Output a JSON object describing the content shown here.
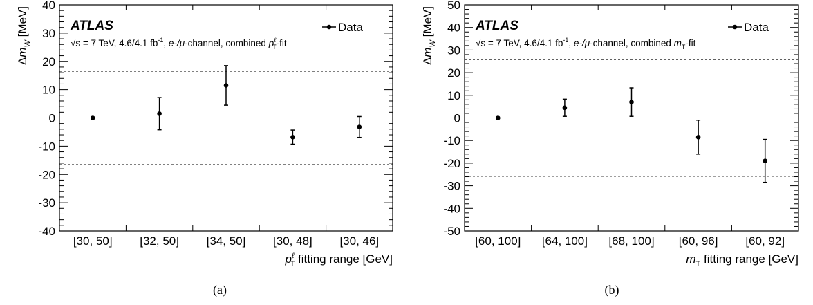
{
  "chart_data": [
    {
      "type": "scatter",
      "panel_label": "(a)",
      "atlas_label": "ATLAS",
      "info_text": "√s = 7 TeV, 4.6/4.1 fb",
      "info_sup": "-1",
      "info_rest_1": ", ",
      "info_channel_e": "e-/",
      "info_channel_mu": "μ",
      "info_rest_2": "-channel, combined ",
      "info_var_main": "p",
      "info_var_sub": "T",
      "info_var_sup": "ℓ",
      "info_suffix": "-fit",
      "ylabel_delta": "Δ",
      "ylabel_m": "m",
      "ylabel_sub": "W",
      "ylabel_unit": " [MeV]",
      "xlabel_var": "p",
      "xlabel_sub": "T",
      "xlabel_sup": "ℓ",
      "xlabel_rest": " fitting range [GeV]",
      "legend": "Data",
      "ylim": [
        -40,
        40
      ],
      "yticks": [
        -40,
        -30,
        -20,
        -10,
        0,
        10,
        20,
        30,
        40
      ],
      "categories": [
        "[30, 50]",
        "[32, 50]",
        "[34, 50]",
        "[30, 48]",
        "[30, 46]"
      ],
      "values": [
        0,
        1.5,
        11.5,
        -6.8,
        -3.2
      ],
      "errors": [
        0,
        5.7,
        7.0,
        2.5,
        3.7
      ],
      "dashed_lines": [
        16.5,
        0,
        -16.5
      ]
    },
    {
      "type": "scatter",
      "panel_label": "(b)",
      "atlas_label": "ATLAS",
      "info_text": "√s = 7 TeV, 4.6/4.1 fb",
      "info_sup": "-1",
      "info_rest_1": ", ",
      "info_channel_e": "e-/",
      "info_channel_mu": "μ",
      "info_rest_2": "-channel, combined ",
      "info_var_main": "m",
      "info_var_sub": "T",
      "info_var_sup": "",
      "info_suffix": "-fit",
      "ylabel_delta": "Δ",
      "ylabel_m": "m",
      "ylabel_sub": "W",
      "ylabel_unit": " [MeV]",
      "xlabel_var": "m",
      "xlabel_sub": "T",
      "xlabel_sup": "",
      "xlabel_rest": " fitting range [GeV]",
      "legend": "Data",
      "ylim": [
        -50,
        50
      ],
      "yticks": [
        -50,
        -40,
        -30,
        -20,
        -10,
        0,
        10,
        20,
        30,
        40,
        50
      ],
      "categories": [
        "[60, 100]",
        "[64, 100]",
        "[68, 100]",
        "[60, 96]",
        "[60, 92]"
      ],
      "values": [
        0,
        4.5,
        7.0,
        -8.5,
        -19.0
      ],
      "errors": [
        0,
        3.8,
        6.3,
        7.5,
        9.5
      ],
      "dashed_lines": [
        25.8,
        0,
        -25.8
      ]
    }
  ]
}
